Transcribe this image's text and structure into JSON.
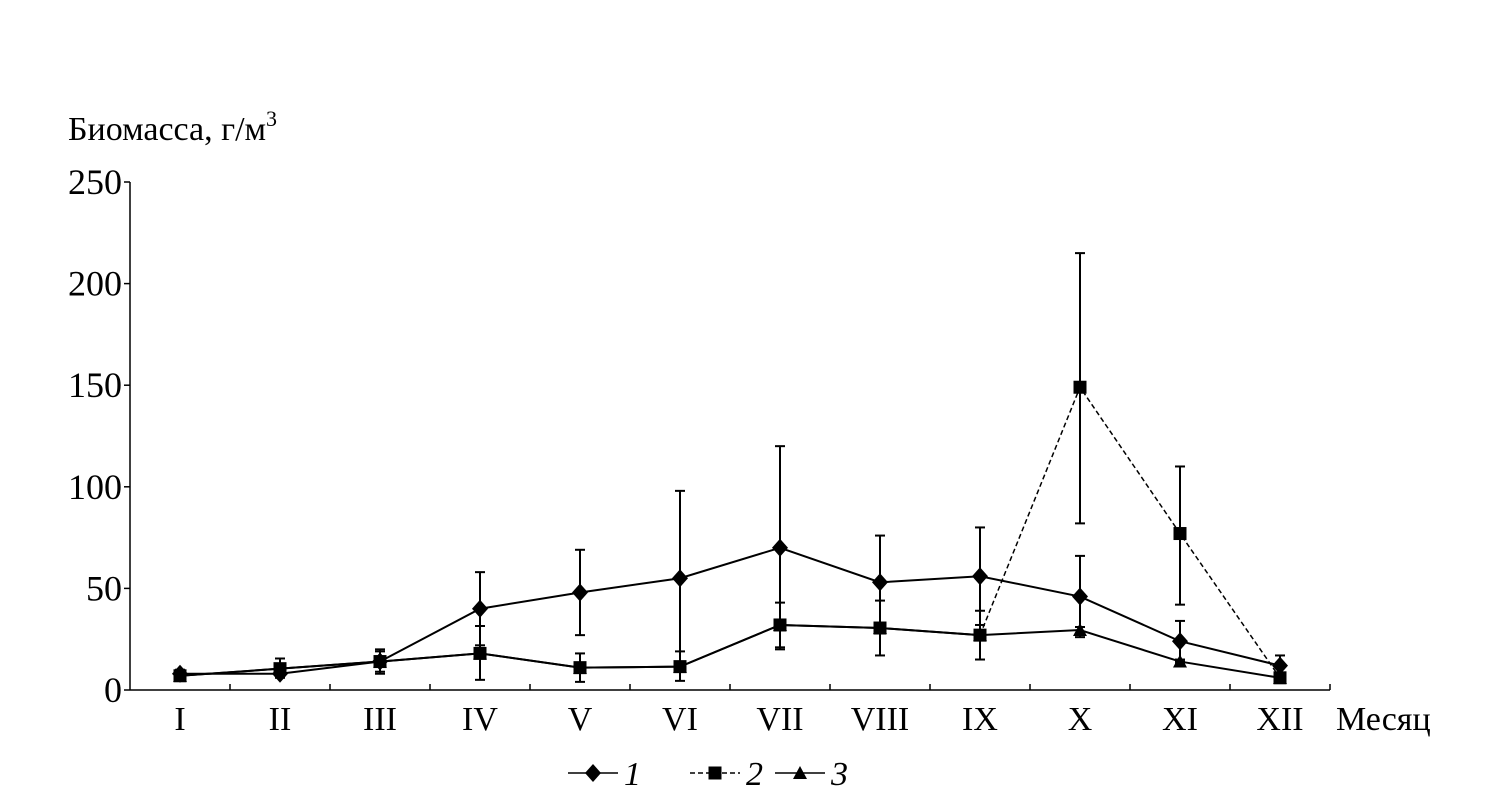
{
  "chart_data": {
    "type": "line",
    "ylabel": "Биомасса, г/м",
    "ylabel_sup": "3",
    "xlabel": "Месяц",
    "categories": [
      "I",
      "II",
      "III",
      "IV",
      "V",
      "VI",
      "VII",
      "VIII",
      "IX",
      "X",
      "XI",
      "XII"
    ],
    "ylim": [
      0,
      250
    ],
    "yticks": [
      0,
      50,
      100,
      150,
      200,
      250
    ],
    "grid": false,
    "legend_position": "bottom",
    "series": [
      {
        "name": "1",
        "marker": "diamond",
        "dash": false,
        "values": [
          8,
          8,
          14,
          40,
          48,
          55,
          70,
          53,
          56,
          46,
          24,
          12
        ],
        "err_low": [
          6,
          6,
          8,
          22,
          27,
          12,
          20,
          30,
          32,
          26,
          14,
          8
        ],
        "err_high": [
          10,
          11,
          20,
          58,
          69,
          98,
          120,
          76,
          80,
          66,
          34,
          17
        ]
      },
      {
        "name": "2",
        "marker": "square",
        "dash": true,
        "values": [
          7,
          10.5,
          14,
          18,
          11,
          11.5,
          32,
          30.5,
          27,
          149,
          77,
          6
        ],
        "err_low": [
          5,
          7,
          9,
          5,
          4,
          4.5,
          21,
          17,
          15,
          82,
          42,
          4
        ],
        "err_high": [
          9,
          15.5,
          19,
          31.5,
          18,
          19,
          43,
          44,
          39,
          215,
          110,
          8
        ]
      },
      {
        "name": "3",
        "marker": "triangle",
        "dash": false,
        "values": [
          7,
          10.5,
          14,
          18,
          11,
          11.5,
          32,
          30.5,
          27,
          29.5,
          14,
          6
        ],
        "err_low": [
          null,
          null,
          null,
          null,
          null,
          null,
          null,
          null,
          null,
          27,
          13,
          null
        ],
        "err_high": [
          null,
          null,
          null,
          null,
          null,
          null,
          null,
          null,
          null,
          31,
          15,
          null
        ]
      }
    ]
  }
}
